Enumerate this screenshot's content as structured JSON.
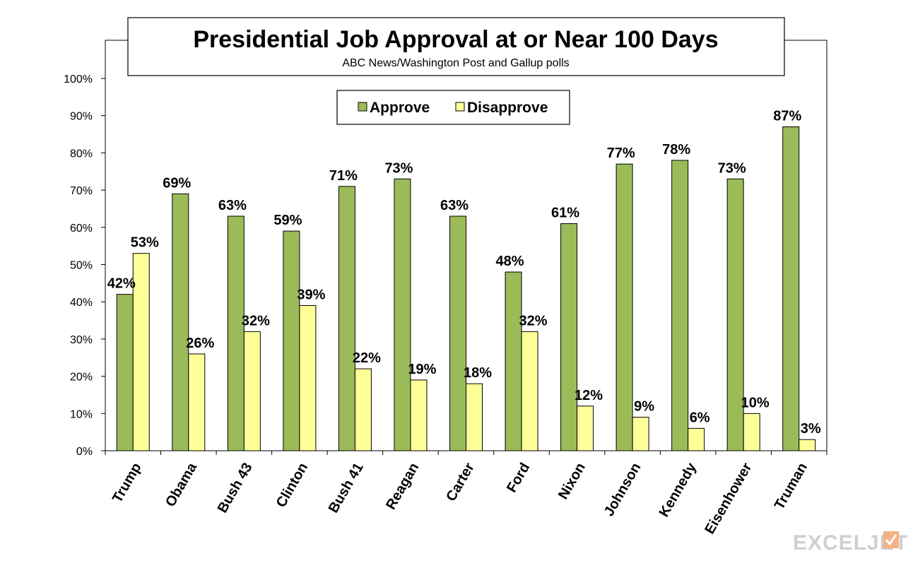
{
  "brand": {
    "name": "EXCELJET"
  },
  "chart_data": {
    "type": "bar",
    "title": "Presidential Job Approval at or Near 100 Days",
    "subtitle": "ABC News/Washington  Post  and Gallup  polls",
    "categories": [
      "Trump",
      "Obama",
      "Bush 43",
      "Clinton",
      "Bush 41",
      "Reagan",
      "Carter",
      "Ford",
      "Nixon",
      "Johnson",
      "Kennedy",
      "Eisenhower",
      "Truman"
    ],
    "series": [
      {
        "name": "Approve",
        "color": "#9bbb59",
        "values": [
          42,
          69,
          63,
          59,
          71,
          73,
          63,
          48,
          61,
          77,
          78,
          73,
          87
        ]
      },
      {
        "name": "Disapprove",
        "color": "#ffff99",
        "values": [
          53,
          26,
          32,
          39,
          22,
          19,
          18,
          32,
          12,
          9,
          6,
          10,
          3
        ]
      }
    ],
    "ylim": [
      0,
      100
    ],
    "yticks": [
      "0%",
      "10%",
      "20%",
      "30%",
      "40%",
      "50%",
      "60%",
      "70%",
      "80%",
      "90%",
      "100%"
    ],
    "value_suffix": "%",
    "legend_position": "top-center",
    "grid": false
  }
}
